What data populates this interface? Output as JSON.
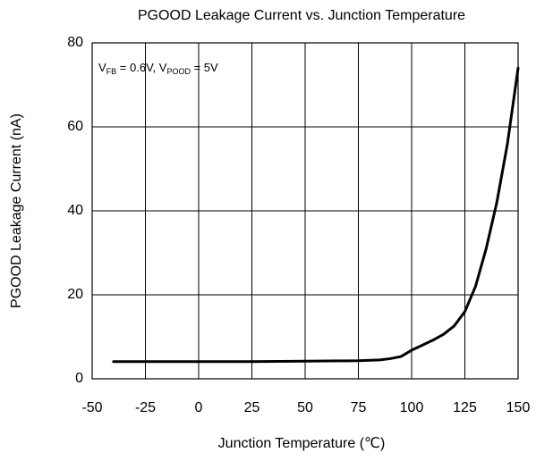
{
  "chart_data": {
    "type": "line",
    "title": "PGOOD Leakage Current vs. Junction Temperature",
    "xlabel": "Junction Temperature (℃)",
    "ylabel": "PGOOD Leakage Current (nA)",
    "annotation_parts": [
      "V",
      "FB",
      " = 0.6V, V",
      "POOD",
      " = 5V"
    ],
    "x": [
      -40,
      -25,
      0,
      25,
      50,
      75,
      85,
      90,
      95,
      100,
      105,
      110,
      115,
      120,
      125,
      130,
      135,
      140,
      145,
      150
    ],
    "values": [
      4.1,
      4.1,
      4.1,
      4.1,
      4.2,
      4.3,
      4.5,
      4.8,
      5.3,
      6.8,
      8,
      9.2,
      10.6,
      12.6,
      16,
      22,
      31,
      42,
      56,
      74
    ],
    "color": "#000000",
    "xlim": [
      -50,
      150
    ],
    "xticks": [
      -50,
      -25,
      0,
      25,
      50,
      75,
      100,
      125,
      150
    ],
    "ylim": [
      0,
      80
    ],
    "yticks": [
      0,
      20,
      40,
      60,
      80
    ],
    "grid": true
  }
}
